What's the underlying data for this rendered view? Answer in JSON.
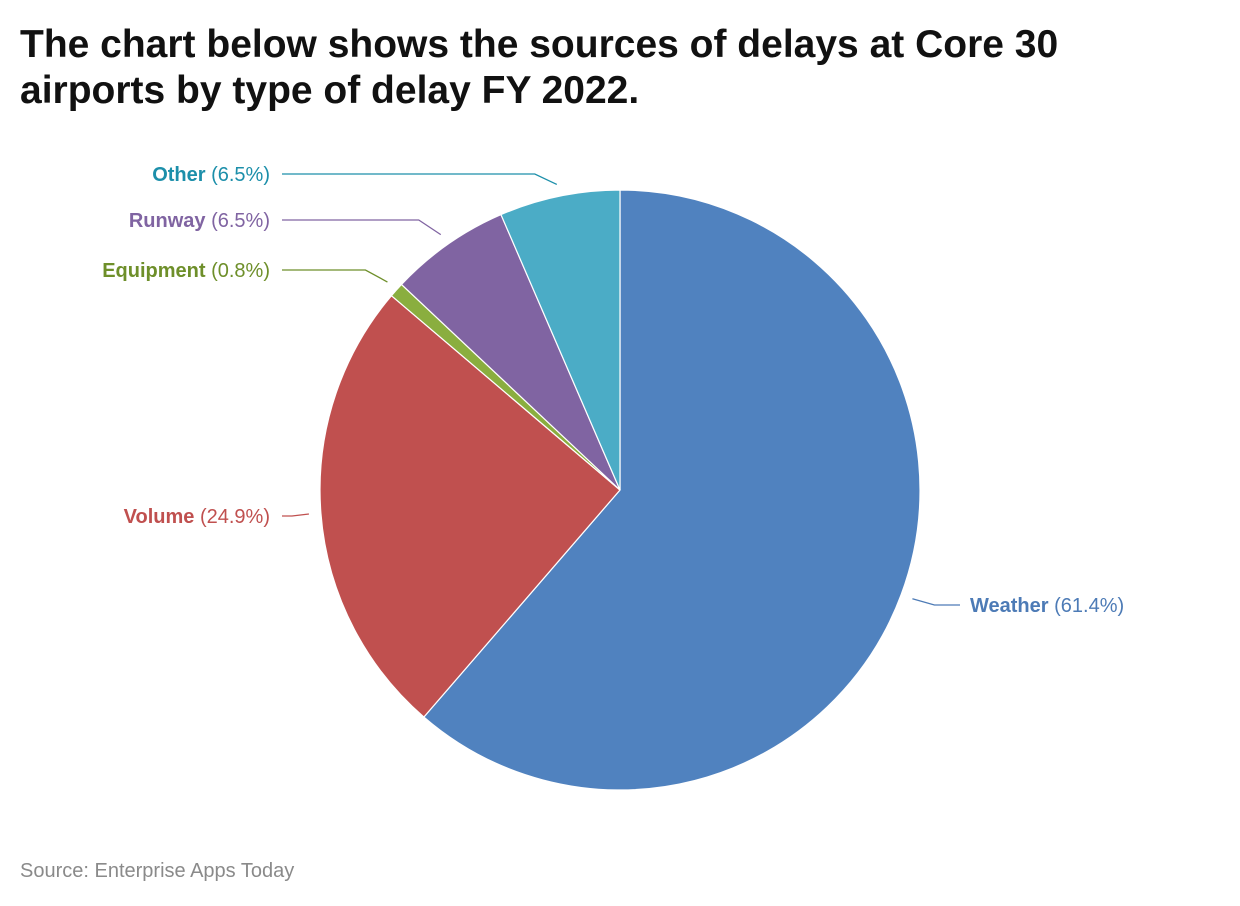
{
  "title": "The chart below shows the sources of delays at Core 30 airports by type of delay FY 2022.",
  "source": "Source: Enterprise Apps Today",
  "chart_data": {
    "type": "pie",
    "title": "The chart below shows the sources of delays at Core 30 airports by type of delay FY 2022.",
    "start": "12 o'clock, clockwise",
    "slices": [
      {
        "key": "weather",
        "label": "Weather",
        "pct_label": "(61.4%)",
        "value": 61.4,
        "color": "#5082BF",
        "label_color": "#4D7BB6"
      },
      {
        "key": "volume",
        "label": "Volume",
        "pct_label": "(24.9%)",
        "value": 24.9,
        "color": "#C0504F",
        "label_color": "#C0504F"
      },
      {
        "key": "equipment",
        "label": "Equipment",
        "pct_label": "(0.8%)",
        "value": 0.8,
        "color": "#8AAE3F",
        "label_color": "#6E8F2A"
      },
      {
        "key": "runway",
        "label": "Runway",
        "pct_label": "(6.5%)",
        "value": 6.5,
        "color": "#8064A2",
        "label_color": "#8064A2"
      },
      {
        "key": "other",
        "label": "Other",
        "pct_label": "(6.5%)",
        "value": 6.5,
        "color": "#4BACC6",
        "label_color": "#1C8FAA"
      }
    ]
  }
}
